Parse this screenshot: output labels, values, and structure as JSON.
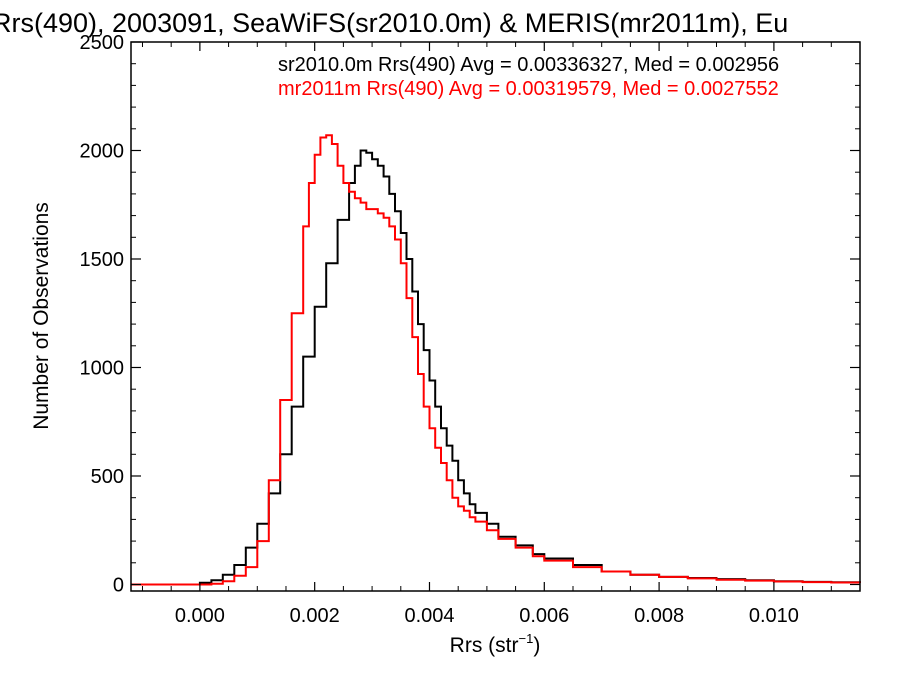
{
  "chart_data": {
    "type": "line",
    "title": "Rrs(490), 2003091, SeaWiFS(sr2010.0m) & MERIS(mr2011m), Eu",
    "xlabel": "Rrs (str",
    "xlabel_sup": "−1",
    "xlabel_close": ")",
    "ylabel": "Number of Observations",
    "xlim": [
      -0.0012,
      0.0115
    ],
    "ylim": [
      -30,
      2500
    ],
    "x_ticks": [
      0.0,
      0.002,
      0.004,
      0.006,
      0.008,
      0.01
    ],
    "x_tick_labels": [
      "0.000",
      "0.002",
      "0.004",
      "0.006",
      "0.008",
      "0.010"
    ],
    "y_ticks": [
      0,
      500,
      1000,
      1500,
      2000,
      2500
    ],
    "y_tick_labels": [
      "0",
      "500",
      "1000",
      "1500",
      "2000",
      "2500"
    ],
    "grid": false,
    "legend_position": "top-right",
    "series": [
      {
        "name": "sr2010.0m",
        "color": "#000000",
        "legend": "sr2010.0m Rrs(490) Avg = 0.00336327, Med = 0.002956",
        "points": [
          [
            -0.0012,
            0
          ],
          [
            -0.0002,
            0
          ],
          [
            0.0,
            8
          ],
          [
            0.0002,
            20
          ],
          [
            0.0004,
            45
          ],
          [
            0.0006,
            90
          ],
          [
            0.0008,
            170
          ],
          [
            0.001,
            280
          ],
          [
            0.0012,
            420
          ],
          [
            0.0014,
            600
          ],
          [
            0.0016,
            820
          ],
          [
            0.0018,
            1050
          ],
          [
            0.002,
            1280
          ],
          [
            0.0022,
            1480
          ],
          [
            0.0024,
            1680
          ],
          [
            0.0026,
            1850
          ],
          [
            0.0027,
            1930
          ],
          [
            0.0028,
            2000
          ],
          [
            0.0029,
            1990
          ],
          [
            0.003,
            1960
          ],
          [
            0.0031,
            1930
          ],
          [
            0.0032,
            1880
          ],
          [
            0.0033,
            1800
          ],
          [
            0.0034,
            1720
          ],
          [
            0.0035,
            1620
          ],
          [
            0.0036,
            1500
          ],
          [
            0.0037,
            1350
          ],
          [
            0.0038,
            1200
          ],
          [
            0.0039,
            1080
          ],
          [
            0.004,
            940
          ],
          [
            0.0041,
            820
          ],
          [
            0.0042,
            720
          ],
          [
            0.0043,
            640
          ],
          [
            0.0044,
            570
          ],
          [
            0.0045,
            480
          ],
          [
            0.0046,
            420
          ],
          [
            0.0047,
            370
          ],
          [
            0.0048,
            330
          ],
          [
            0.005,
            280
          ],
          [
            0.0052,
            220
          ],
          [
            0.0055,
            180
          ],
          [
            0.0058,
            140
          ],
          [
            0.006,
            120
          ],
          [
            0.0065,
            90
          ],
          [
            0.007,
            60
          ],
          [
            0.0075,
            45
          ],
          [
            0.008,
            35
          ],
          [
            0.0085,
            30
          ],
          [
            0.009,
            25
          ],
          [
            0.0095,
            20
          ],
          [
            0.01,
            15
          ],
          [
            0.0105,
            12
          ],
          [
            0.011,
            10
          ],
          [
            0.0115,
            8
          ]
        ]
      },
      {
        "name": "mr2011m",
        "color": "#ff0000",
        "legend": "mr2011m Rrs(490) Avg = 0.00319579, Med = 0.0027552",
        "points": [
          [
            -0.0012,
            0
          ],
          [
            0.0,
            0
          ],
          [
            0.0002,
            3
          ],
          [
            0.0004,
            15
          ],
          [
            0.0006,
            40
          ],
          [
            0.0008,
            80
          ],
          [
            0.001,
            200
          ],
          [
            0.0012,
            480
          ],
          [
            0.0014,
            850
          ],
          [
            0.0016,
            1250
          ],
          [
            0.0018,
            1650
          ],
          [
            0.0019,
            1850
          ],
          [
            0.002,
            1980
          ],
          [
            0.0021,
            2060
          ],
          [
            0.0022,
            2070
          ],
          [
            0.0023,
            2030
          ],
          [
            0.0024,
            1930
          ],
          [
            0.0025,
            1850
          ],
          [
            0.0026,
            1810
          ],
          [
            0.0027,
            1780
          ],
          [
            0.0028,
            1760
          ],
          [
            0.0029,
            1730
          ],
          [
            0.003,
            1730
          ],
          [
            0.0031,
            1710
          ],
          [
            0.0032,
            1690
          ],
          [
            0.0033,
            1650
          ],
          [
            0.0034,
            1590
          ],
          [
            0.0035,
            1480
          ],
          [
            0.0036,
            1320
          ],
          [
            0.0037,
            1140
          ],
          [
            0.0038,
            970
          ],
          [
            0.0039,
            820
          ],
          [
            0.004,
            720
          ],
          [
            0.0041,
            630
          ],
          [
            0.0042,
            560
          ],
          [
            0.0043,
            480
          ],
          [
            0.0044,
            400
          ],
          [
            0.0045,
            360
          ],
          [
            0.0046,
            340
          ],
          [
            0.0047,
            310
          ],
          [
            0.0048,
            290
          ],
          [
            0.005,
            250
          ],
          [
            0.0052,
            210
          ],
          [
            0.0055,
            170
          ],
          [
            0.0058,
            130
          ],
          [
            0.006,
            110
          ],
          [
            0.0065,
            80
          ],
          [
            0.007,
            60
          ],
          [
            0.0075,
            45
          ],
          [
            0.008,
            35
          ],
          [
            0.0085,
            28
          ],
          [
            0.009,
            22
          ],
          [
            0.0095,
            18
          ],
          [
            0.01,
            14
          ],
          [
            0.0105,
            11
          ],
          [
            0.011,
            9
          ],
          [
            0.0115,
            7
          ]
        ]
      }
    ]
  }
}
